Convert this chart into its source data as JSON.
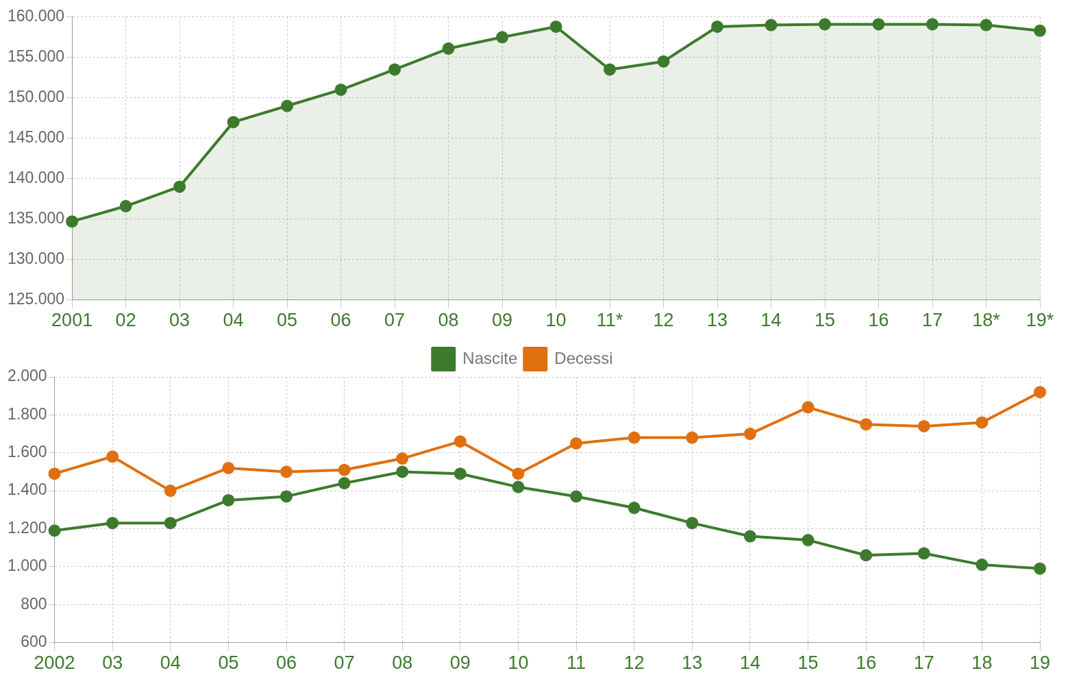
{
  "chart_data": [
    {
      "type": "area",
      "categories": [
        "2001",
        "02",
        "03",
        "04",
        "05",
        "06",
        "07",
        "08",
        "09",
        "10",
        "11*",
        "12",
        "13",
        "14",
        "15",
        "16",
        "17",
        "18*",
        "19*"
      ],
      "series": [
        {
          "color": "#3d7a2e",
          "values": [
            134700,
            136600,
            139000,
            147000,
            149000,
            151000,
            153500,
            156100,
            157500,
            158800,
            153500,
            154500,
            158800,
            159000,
            159100,
            159100,
            159100,
            159000,
            158300
          ]
        }
      ],
      "ylim": [
        125000,
        160000
      ],
      "yticks": [
        {
          "value": 125000,
          "label": "125.000"
        },
        {
          "value": 130000,
          "label": "130.000"
        },
        {
          "value": 135000,
          "label": "135.000"
        },
        {
          "value": 140000,
          "label": "140.000"
        },
        {
          "value": 145000,
          "label": "145.000"
        },
        {
          "value": 150000,
          "label": "150.000"
        },
        {
          "value": 155000,
          "label": "155.000"
        },
        {
          "value": 160000,
          "label": "160.000"
        }
      ],
      "grid": true,
      "marker": "circle",
      "legend": false
    },
    {
      "type": "line",
      "categories": [
        "2002",
        "03",
        "04",
        "05",
        "06",
        "07",
        "08",
        "09",
        "10",
        "11",
        "12",
        "13",
        "14",
        "15",
        "16",
        "17",
        "18",
        "19"
      ],
      "series": [
        {
          "name": "Nascite",
          "color": "#3d7a2e",
          "values": [
            1190,
            1230,
            1230,
            1350,
            1370,
            1440,
            1500,
            1490,
            1420,
            1370,
            1310,
            1230,
            1160,
            1140,
            1060,
            1070,
            1010,
            990
          ]
        },
        {
          "name": "Decessi",
          "color": "#e0700f",
          "values": [
            1490,
            1580,
            1400,
            1520,
            1500,
            1510,
            1570,
            1660,
            1490,
            1650,
            1680,
            1680,
            1700,
            1840,
            1750,
            1740,
            1760,
            1920
          ]
        }
      ],
      "ylim": [
        600,
        2000
      ],
      "yticks": [
        {
          "value": 600,
          "label": "600"
        },
        {
          "value": 800,
          "label": "800"
        },
        {
          "value": 1000,
          "label": "1.000"
        },
        {
          "value": 1200,
          "label": "1.200"
        },
        {
          "value": 1400,
          "label": "1.400"
        },
        {
          "value": 1600,
          "label": "1.600"
        },
        {
          "value": 1800,
          "label": "1.800"
        },
        {
          "value": 2000,
          "label": "2.000"
        }
      ],
      "grid": true,
      "marker": "circle",
      "legend": "top"
    }
  ]
}
